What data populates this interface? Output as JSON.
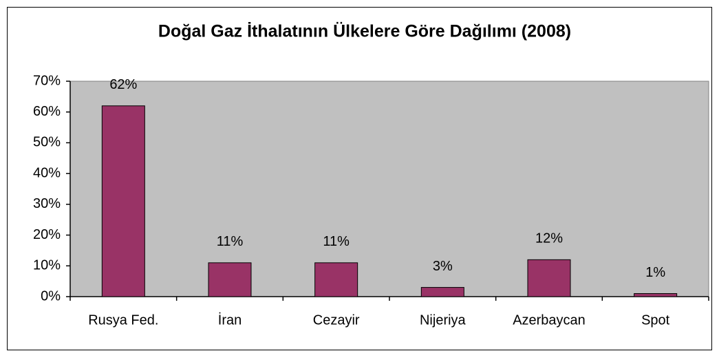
{
  "chart_data": {
    "type": "bar",
    "title": "Doğal Gaz İthalatının Ülkelere Göre Dağılımı (2008)",
    "categories": [
      "Rusya Fed.",
      "İran",
      "Cezayir",
      "Nijeriya",
      "Azerbaycan",
      "Spot"
    ],
    "values": [
      62,
      11,
      11,
      3,
      12,
      1
    ],
    "value_labels": [
      "62%",
      "11%",
      "11%",
      "3%",
      "12%",
      "1%"
    ],
    "color": "#993366",
    "ylim": [
      0,
      70
    ],
    "yticks": [
      {
        "value": 0,
        "label": "0%"
      },
      {
        "value": 10,
        "label": "10%"
      },
      {
        "value": 20,
        "label": "20%"
      },
      {
        "value": 30,
        "label": "30%"
      },
      {
        "value": 40,
        "label": "40%"
      },
      {
        "value": 50,
        "label": "50%"
      },
      {
        "value": 60,
        "label": "60%"
      },
      {
        "value": 70,
        "label": "70%"
      }
    ],
    "grid": false
  }
}
